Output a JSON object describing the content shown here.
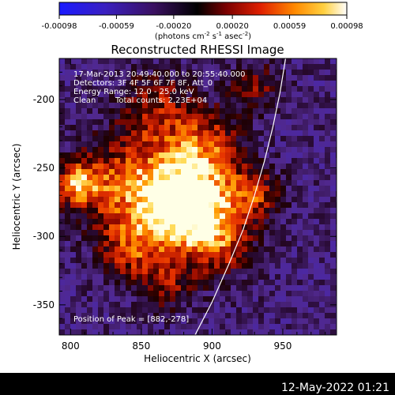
{
  "colorbar": {
    "ticks": [
      "-0.00098",
      "-0.00059",
      "-0.00020",
      "0.00020",
      "0.00059",
      "0.00098"
    ],
    "unit_label": "(photons cm",
    "unit_sup1": "-2",
    "unit_mid": " s",
    "unit_sup2": "-1",
    "unit_mid2": " asec",
    "unit_sup3": "-2",
    "unit_end": ")",
    "range": [
      -0.00098,
      0.00098
    ]
  },
  "chart_data": {
    "type": "heatmap",
    "title": "Reconstructed RHESSI Image",
    "xlabel": "Heliocentric X (arcsec)",
    "ylabel": "Heliocentric Y (arcsec)",
    "xlim": [
      792,
      988
    ],
    "ylim": [
      -372,
      -170
    ],
    "x_ticks": [
      800,
      850,
      900,
      950
    ],
    "y_ticks": [
      -200,
      -250,
      -300,
      -350
    ],
    "annotations": {
      "time_range": "17-Mar-2013 20:49:40.000 to 20:55:40.000",
      "detectors": "Detectors: 3F 4F 5F 6F 7F 8F, Att_0",
      "energy": "Energy Range: 12.0 - 25.0 keV",
      "clean": "Clean",
      "total_counts": "Total counts: 2.23E+04",
      "peak": "Position of Peak = [882,-278]"
    },
    "peak_position": [
      882,
      -278
    ],
    "limb_curve": [
      [
        888,
        -372
      ],
      [
        900,
        -348
      ],
      [
        912,
        -320
      ],
      [
        922,
        -295
      ],
      [
        930,
        -270
      ],
      [
        937,
        -245
      ],
      [
        943,
        -220
      ],
      [
        948,
        -195
      ],
      [
        952,
        -170
      ]
    ]
  },
  "footer": {
    "timestamp": "12-May-2022 01:21"
  }
}
